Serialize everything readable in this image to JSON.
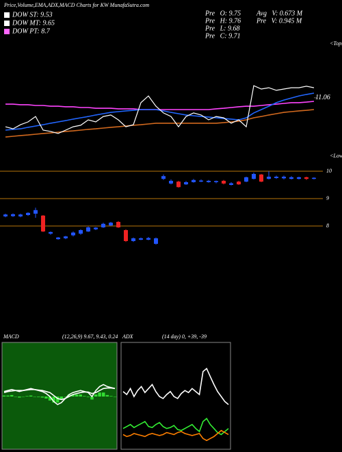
{
  "header": {
    "title": "Price,Volume,EMA,ADX,MACD Charts for KW MunafaSutra.com",
    "legend": [
      {
        "label": "DOW ST: 9.53",
        "color": "#ffffff"
      },
      {
        "label": "DOW MT: 9.65",
        "color": "#ffffff"
      },
      {
        "label": "DOW PT: 8.7",
        "color": "#ff66ff"
      }
    ],
    "stats": [
      "Pre   O: 9.75",
      "Avg   V: 0.673 M",
      "Pre   H: 9.76",
      "Pre   V: 0.945 M",
      "Pre   L: 9.68",
      "Pre   C: 9.71"
    ]
  },
  "chart_data": [
    {
      "type": "line",
      "annotations": [
        "<Tops",
        "<Lows"
      ],
      "ylim": [
        9,
        13
      ],
      "yticks": [
        11.06
      ],
      "series": [
        {
          "color": "#d2691e",
          "values": [
            9.53,
            9.56,
            9.59,
            9.61,
            9.64,
            9.67,
            9.69,
            9.72,
            9.75,
            9.77,
            9.8,
            9.83,
            9.85,
            9.88,
            9.91,
            9.93,
            9.96,
            9.99,
            10.01,
            10.04,
            10.07,
            10.07,
            10.07,
            10.07,
            10.07,
            10.07,
            10.07,
            10.07,
            10.07,
            10.09,
            10.12,
            10.15,
            10.2,
            10.28,
            10.33,
            10.39,
            10.44,
            10.49,
            10.52,
            10.55,
            10.57,
            10.6
          ]
        },
        {
          "color": "#ff44ff",
          "values": [
            10.81,
            10.81,
            10.79,
            10.79,
            10.76,
            10.76,
            10.73,
            10.73,
            10.71,
            10.71,
            10.68,
            10.68,
            10.65,
            10.65,
            10.65,
            10.63,
            10.63,
            10.63,
            10.6,
            10.6,
            10.6,
            10.6,
            10.6,
            10.6,
            10.6,
            10.6,
            10.6,
            10.6,
            10.63,
            10.65,
            10.68,
            10.71,
            10.73,
            10.73,
            10.76,
            10.79,
            10.81,
            10.84,
            10.87,
            10.87,
            10.89,
            10.92
          ]
        },
        {
          "color": "#2266ff",
          "values": [
            9.8,
            9.83,
            9.85,
            9.91,
            9.96,
            10.01,
            10.07,
            10.12,
            10.17,
            10.23,
            10.28,
            10.33,
            10.39,
            10.44,
            10.49,
            10.52,
            10.55,
            10.57,
            10.6,
            10.6,
            10.6,
            10.55,
            10.49,
            10.44,
            10.39,
            10.36,
            10.33,
            10.31,
            10.28,
            10.25,
            10.23,
            10.2,
            10.28,
            10.47,
            10.6,
            10.73,
            10.87,
            10.97,
            11.05,
            11.13,
            11.19,
            11.24
          ]
        },
        {
          "color": "#ffffff",
          "values": [
            9.93,
            9.85,
            10.01,
            10.12,
            10.33,
            9.8,
            9.75,
            9.67,
            9.8,
            9.93,
            9.99,
            10.2,
            10.12,
            10.33,
            10.39,
            10.2,
            9.93,
            10.01,
            10.87,
            11.13,
            10.73,
            10.47,
            10.33,
            9.93,
            10.33,
            10.47,
            10.39,
            10.2,
            10.33,
            10.28,
            10.07,
            10.2,
            9.93,
            11.53,
            11.4,
            11.45,
            11.35,
            11.4,
            11.45,
            11.45,
            11.51,
            11.45
          ]
        }
      ]
    },
    {
      "type": "candlestick",
      "ylim": [
        6.375,
        10.375
      ],
      "yticks": [
        8,
        9,
        10
      ],
      "up_color": "#2255ff",
      "down_color": "#ee2222",
      "grid_color": "#b8760a",
      "open": [
        8.35,
        8.36,
        8.35,
        8.4,
        8.45,
        8.38,
        7.72,
        7.52,
        7.55,
        7.66,
        7.72,
        7.8,
        7.88,
        7.95,
        8.02,
        8.15,
        7.85,
        7.45,
        7.5,
        7.5,
        7.35,
        9.72,
        9.55,
        9.62,
        9.52,
        9.6,
        9.62,
        9.6,
        9.6,
        9.65,
        9.5,
        9.62,
        9.62,
        9.72,
        9.88,
        9.72,
        9.75,
        9.74,
        9.72,
        9.72,
        9.78,
        9.72
      ],
      "high": [
        8.45,
        8.46,
        8.45,
        8.5,
        8.67,
        8.4,
        7.8,
        7.6,
        7.64,
        7.8,
        7.88,
        7.98,
        7.96,
        8.12,
        8.15,
        8.18,
        7.88,
        7.58,
        7.58,
        7.6,
        7.58,
        9.88,
        9.7,
        9.65,
        9.64,
        9.72,
        9.7,
        9.68,
        9.66,
        9.68,
        9.6,
        9.65,
        9.8,
        9.95,
        9.9,
        10.0,
        9.84,
        9.84,
        9.82,
        9.8,
        9.8,
        9.78
      ],
      "low": [
        8.32,
        8.33,
        8.32,
        8.37,
        8.3,
        7.78,
        7.68,
        7.5,
        7.52,
        7.62,
        7.68,
        7.78,
        7.85,
        7.93,
        8.0,
        7.93,
        7.42,
        7.42,
        7.48,
        7.48,
        7.32,
        9.68,
        9.52,
        9.4,
        9.5,
        9.58,
        9.6,
        9.58,
        9.56,
        9.52,
        9.48,
        9.5,
        9.6,
        9.7,
        9.6,
        9.7,
        9.72,
        9.7,
        9.7,
        9.7,
        9.68,
        9.7
      ],
      "close": [
        8.42,
        8.43,
        8.42,
        8.48,
        8.58,
        7.8,
        7.78,
        7.58,
        7.62,
        7.76,
        7.85,
        7.95,
        7.94,
        8.08,
        8.12,
        7.95,
        7.45,
        7.55,
        7.55,
        7.56,
        7.55,
        9.82,
        9.65,
        9.42,
        9.6,
        9.68,
        9.66,
        9.65,
        9.64,
        9.55,
        9.56,
        9.52,
        9.78,
        9.9,
        9.62,
        9.8,
        9.8,
        9.8,
        9.78,
        9.78,
        9.72,
        9.76
      ]
    },
    {
      "type": "line",
      "title": "MACD",
      "subtitle": "(12,26,9) 9.67, 9.43, 0.24",
      "background": "#0b5a0b",
      "ylim": [
        -0.5,
        0.5
      ],
      "series": [
        {
          "type": "bar",
          "color": "#33dd33",
          "values": [
            0.01,
            0.01,
            0.015,
            0,
            -0.01,
            0,
            0.005,
            0.01,
            0,
            -0.005,
            -0.01,
            -0.02,
            -0.04,
            -0.06,
            -0.06,
            -0.03,
            0,
            0.02,
            0.02,
            0.02,
            0.02,
            0.005,
            -0.005,
            -0.03,
            0.02,
            0.04,
            0.04,
            0.015,
            0.005,
            0
          ]
        },
        {
          "color": "#ffffff",
          "values": [
            0.04,
            0.05,
            0.055,
            0.06,
            0.06,
            0.06,
            0.065,
            0.07,
            0.07,
            0.065,
            0.06,
            0.05,
            0.04,
            0.01,
            -0.02,
            -0.03,
            -0.02,
            0,
            0.02,
            0.03,
            0.04,
            0.045,
            0.045,
            0.03,
            0.04,
            0.06,
            0.08,
            0.085,
            0.085,
            0.08
          ]
        },
        {
          "color": "#ffffff",
          "values": [
            0.05,
            0.06,
            0.07,
            0.06,
            0.05,
            0.06,
            0.07,
            0.08,
            0.07,
            0.06,
            0.05,
            0.03,
            0,
            -0.05,
            -0.08,
            -0.06,
            -0.02,
            0.02,
            0.04,
            0.05,
            0.06,
            0.05,
            0.04,
            0,
            0.06,
            0.1,
            0.12,
            0.1,
            0.09,
            0.08
          ]
        }
      ]
    },
    {
      "type": "line",
      "title": "ADX",
      "subtitle": "(14 day) 0, +39, -39",
      "background": "#000000",
      "ylim": [
        0,
        100
      ],
      "series": [
        {
          "color": "#ffffff",
          "values": [
            55,
            52,
            58,
            50,
            56,
            60,
            54,
            58,
            62,
            55,
            50,
            48,
            52,
            55,
            50,
            48,
            53,
            56,
            54,
            58,
            55,
            52,
            75,
            78,
            70,
            62,
            55,
            50,
            45,
            42
          ]
        },
        {
          "color": "#33ee33",
          "values": [
            18,
            20,
            22,
            19,
            21,
            23,
            25,
            20,
            19,
            22,
            24,
            20,
            18,
            19,
            21,
            17,
            16,
            18,
            20,
            22,
            18,
            15,
            25,
            28,
            22,
            18,
            14,
            12,
            15,
            18
          ]
        },
        {
          "color": "#ff7f00",
          "values": [
            12,
            10,
            11,
            13,
            12,
            11,
            10,
            12,
            13,
            12,
            11,
            12,
            14,
            13,
            12,
            14,
            15,
            13,
            12,
            11,
            12,
            13,
            8,
            6,
            8,
            10,
            13,
            16,
            14,
            12
          ]
        }
      ]
    }
  ]
}
